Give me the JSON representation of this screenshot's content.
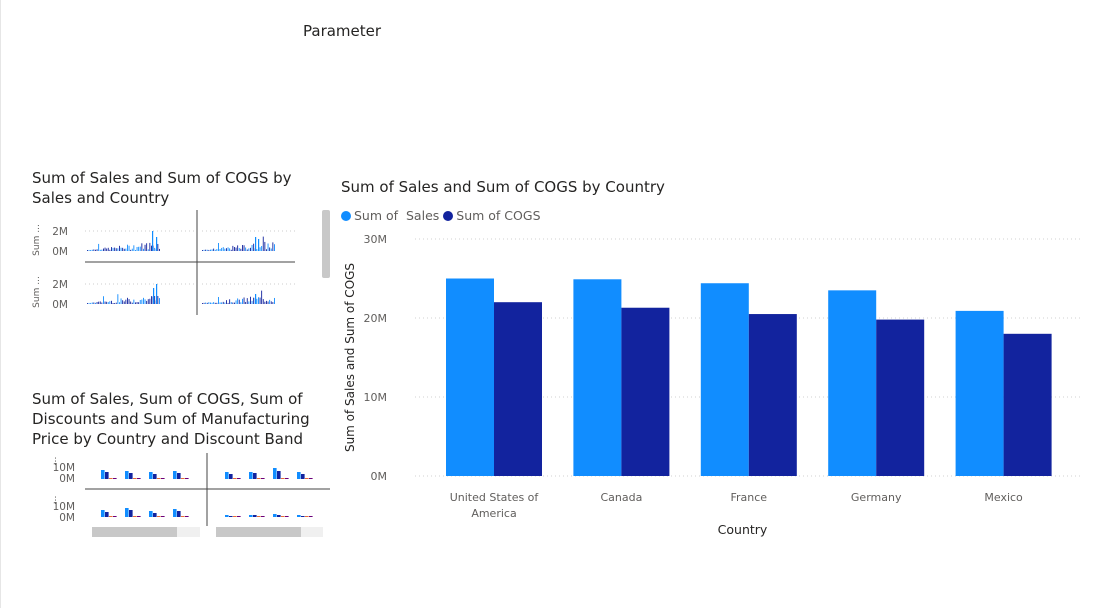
{
  "parameter": {
    "title": "Parameter"
  },
  "colors": {
    "sales": "#118dff",
    "cogs": "#12239e",
    "discounts": "#e66c37",
    "manufacturing": "#6b007b"
  },
  "main_chart_title": "Sum of Sales and Sum of COGS by Country",
  "legend": [
    {
      "label": "Sum of  Sales",
      "color": "#118dff"
    },
    {
      "label": "Sum of COGS",
      "color": "#12239e"
    }
  ],
  "small_chart1": {
    "title": "Sum of Sales and Sum of COGS by Sales and Country",
    "row_labels": [
      "Sum ...",
      "Sum ..."
    ],
    "y_ticks": [
      "2M",
      "0M"
    ]
  },
  "small_chart2": {
    "title": "Sum of Sales, Sum of COGS, Sum of Discounts and Sum of Manufacturing Price by Country and Discount Band",
    "y_ticks": [
      "10M",
      "0M"
    ]
  },
  "chart_data": [
    {
      "type": "bar",
      "title": "Sum of Sales and Sum of COGS by Country",
      "xlabel": "Country",
      "ylabel": "Sum of Sales and Sum of COGS",
      "categories": [
        "United States of America",
        "Canada",
        "France",
        "Germany",
        "Mexico"
      ],
      "category_lines": [
        [
          "United States of",
          "America"
        ],
        [
          "Canada"
        ],
        [
          "France"
        ],
        [
          "Germany"
        ],
        [
          "Mexico"
        ]
      ],
      "series": [
        {
          "name": "Sum of  Sales",
          "values": [
            25.0,
            24.9,
            24.4,
            23.5,
            20.9
          ]
        },
        {
          "name": "Sum of COGS",
          "values": [
            22.0,
            21.3,
            20.5,
            19.8,
            18.0
          ]
        }
      ],
      "unit": "M",
      "ylim": [
        0,
        30
      ],
      "y_ticks": [
        "0M",
        "10M",
        "20M",
        "30M"
      ],
      "grid": true,
      "legend": "top-left"
    }
  ]
}
